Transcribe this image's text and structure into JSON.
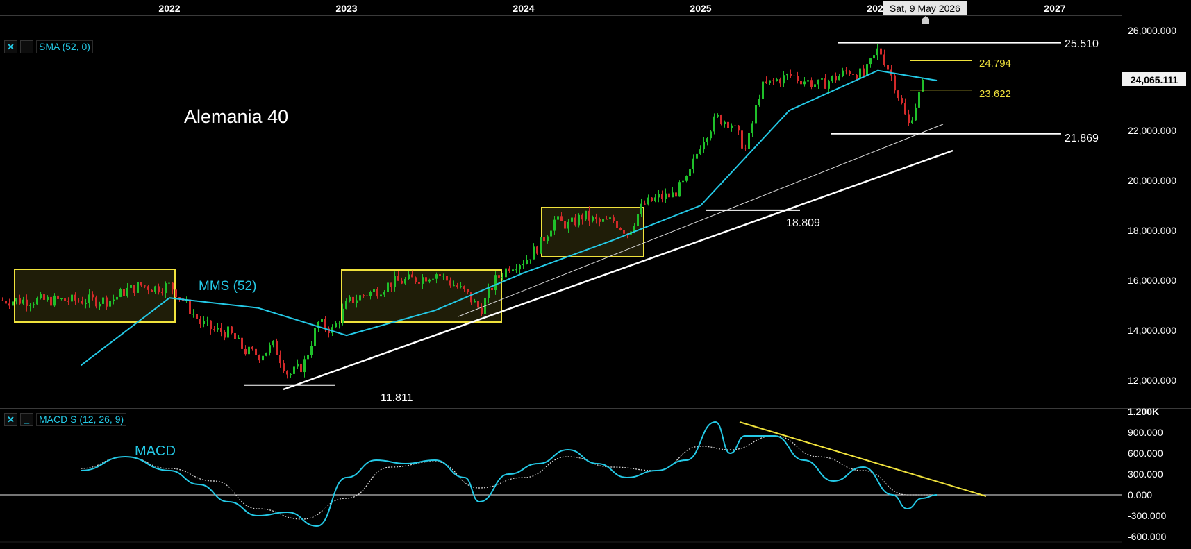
{
  "colors": {
    "background": "#000000",
    "candle_up": "#1fbf2a",
    "candle_down": "#d22a2a",
    "sma": "#24c9e6",
    "macd": "#24c9e6",
    "signal": "#dddddd",
    "zone": "#f0e23c",
    "level_yellow": "#f0e23c",
    "axis_text": "#ffffff",
    "gridline": "#333333"
  },
  "icons": {
    "close": "close-icon",
    "minimize": "minimize-icon",
    "crosshair": "crosshair-marker-icon"
  },
  "top_axis": {
    "years": [
      "2022",
      "2023",
      "2024",
      "2025",
      "2026",
      "2027"
    ],
    "cursor_date": "Sat, 9 May 2026"
  },
  "price_panel": {
    "indicator_label": "SMA (52, 0)",
    "title": "Alemania 40",
    "sma_label": "MMS (52)",
    "y_ticks": [
      "26,000.000",
      "24,000.000",
      "22,000.000",
      "20,000.000",
      "18,000.000",
      "16,000.000",
      "14,000.000",
      "12,000.000"
    ],
    "last_price": "24,065.111",
    "levels": [
      {
        "label": "25.510",
        "value": 25510
      },
      {
        "label": "24.794",
        "value": 24794
      },
      {
        "label": "23.622",
        "value": 23622
      },
      {
        "label": "21.869",
        "value": 21869
      },
      {
        "label": "18.809",
        "value": 18809
      },
      {
        "label": "11.811",
        "value": 11811
      }
    ]
  },
  "macd_panel": {
    "indicator_label": "MACD S (12, 26, 9)",
    "title": "MACD",
    "y_ticks": [
      "1.200K",
      "900.000",
      "600.000",
      "300.000",
      "0.000",
      "-300.000",
      "-600.000"
    ]
  },
  "chart_data": [
    {
      "type": "line",
      "title": "Alemania 40",
      "xlabel": "",
      "ylabel": "",
      "xlim": [
        "2021-07",
        "2027-03"
      ],
      "ylim": [
        11000,
        26500
      ],
      "x_ticks": [
        "2022",
        "2023",
        "2024",
        "2025",
        "2026",
        "2027"
      ],
      "grid": false,
      "series": [
        {
          "name": "",
          "kind": "weekly close (approx.)",
          "x": [
            "2021-09",
            "2021-10",
            "2021-11",
            "2021-12",
            "2022-01",
            "2022-02",
            "2022-03",
            "2022-04",
            "2022-05",
            "2022-06",
            "2022-07",
            "2022-08",
            "2022-09",
            "2022-10",
            "2022-11",
            "2022-12",
            "2023-01",
            "2023-02",
            "2023-03",
            "2023-04",
            "2023-05",
            "2023-06",
            "2023-07",
            "2023-08",
            "2023-09",
            "2023-10",
            "2023-11",
            "2023-12",
            "2024-01",
            "2024-02",
            "2024-03",
            "2024-04",
            "2024-05",
            "2024-06",
            "2024-07",
            "2024-08",
            "2024-09",
            "2024-10",
            "2024-11",
            "2024-12",
            "2025-01",
            "2025-02",
            "2025-03",
            "2025-04",
            "2025-05",
            "2025-06",
            "2025-07",
            "2025-08",
            "2025-09",
            "2025-10",
            "2025-11",
            "2025-12",
            "2026-01",
            "2026-02",
            "2026-03",
            "2026-04",
            "2026-05"
          ],
          "y": [
            15200,
            15600,
            15800,
            15700,
            15800,
            15100,
            14300,
            14000,
            13900,
            13200,
            13000,
            13400,
            12200,
            12600,
            14300,
            14000,
            15100,
            15400,
            15600,
            15900,
            16000,
            16100,
            16300,
            15900,
            15500,
            14800,
            16000,
            16600,
            16800,
            17400,
            18400,
            18200,
            18600,
            18300,
            18400,
            17900,
            19000,
            19300,
            19400,
            20000,
            21600,
            22500,
            22300,
            21200,
            23700,
            24000,
            24200,
            24000,
            23800,
            24100,
            24400,
            24200,
            25300,
            24000,
            22200,
            23900,
            24065
          ]
        },
        {
          "name": "MMS (52)",
          "x": [
            "2021-07",
            "2022-01",
            "2022-07",
            "2023-01",
            "2023-07",
            "2024-01",
            "2024-07",
            "2025-01",
            "2025-07",
            "2026-01",
            "2026-05"
          ],
          "y": [
            12600,
            15300,
            14900,
            13800,
            14800,
            16300,
            17600,
            19000,
            22800,
            24400,
            24000
          ]
        }
      ],
      "annotations": [
        "25.510",
        "24.794",
        "23.622",
        "21.869",
        "18.809",
        "11.811"
      ]
    },
    {
      "type": "line",
      "title": "MACD",
      "ylim": [
        -600,
        1200
      ],
      "xlim": [
        "2021-07",
        "2027-03"
      ],
      "series": [
        {
          "name": "MACD S (12, 26, 9)",
          "x": [
            "2021-07",
            "2021-10",
            "2022-01",
            "2022-03",
            "2022-05",
            "2022-07",
            "2022-09",
            "2022-11",
            "2023-01",
            "2023-03",
            "2023-05",
            "2023-07",
            "2023-09",
            "2023-10",
            "2023-12",
            "2024-02",
            "2024-04",
            "2024-06",
            "2024-08",
            "2024-10",
            "2024-12",
            "2025-02",
            "2025-03",
            "2025-04",
            "2025-06",
            "2025-08",
            "2025-10",
            "2025-12",
            "2026-02",
            "2026-03",
            "2026-04",
            "2026-05"
          ],
          "y": [
            350,
            550,
            350,
            150,
            -100,
            -300,
            -250,
            -450,
            250,
            500,
            450,
            500,
            250,
            -100,
            300,
            450,
            650,
            450,
            250,
            350,
            500,
            1050,
            600,
            850,
            850,
            500,
            200,
            400,
            0,
            -200,
            -50,
            0
          ]
        },
        {
          "name": "",
          "x": [
            "2021-07",
            "2021-10",
            "2022-01",
            "2022-04",
            "2022-07",
            "2022-10",
            "2023-01",
            "2023-04",
            "2023-07",
            "2023-10",
            "2024-01",
            "2024-04",
            "2024-07",
            "2024-10",
            "2025-01",
            "2025-03",
            "2025-06",
            "2025-09",
            "2025-12",
            "2026-03",
            "2026-05"
          ],
          "y": [
            380,
            550,
            380,
            200,
            -200,
            -350,
            -50,
            400,
            480,
            100,
            250,
            550,
            400,
            350,
            700,
            650,
            850,
            550,
            350,
            0,
            0
          ]
        }
      ]
    }
  ]
}
